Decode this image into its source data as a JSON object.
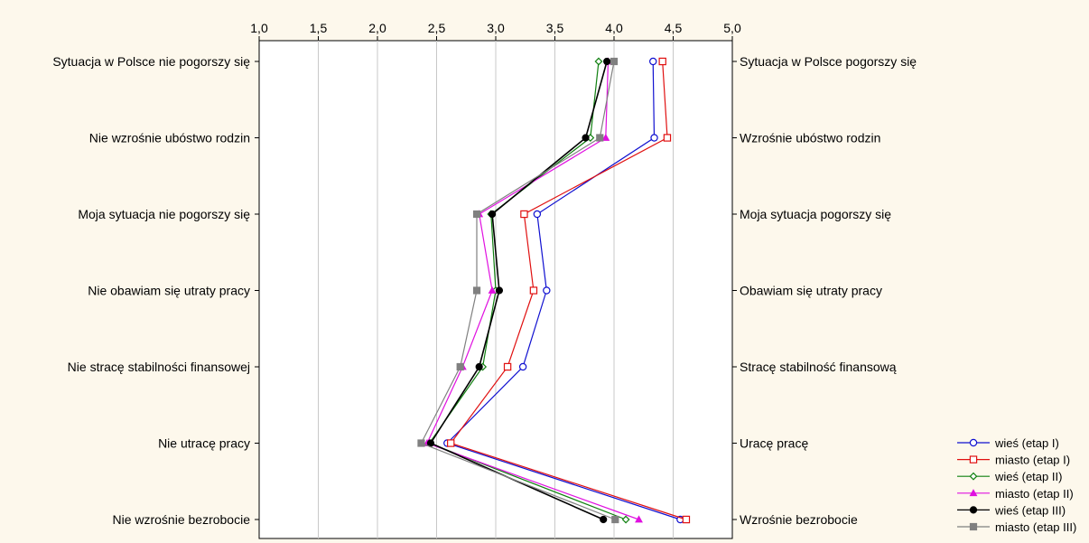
{
  "chart_data": {
    "type": "line",
    "orientation": "horizontal-profile",
    "xlim": [
      1.0,
      5.0
    ],
    "x_ticks": [
      "1,0",
      "1,5",
      "2,0",
      "2,5",
      "3,0",
      "3,5",
      "4,0",
      "4,5",
      "5,0"
    ],
    "x_tick_values": [
      1.0,
      1.5,
      2.0,
      2.5,
      3.0,
      3.5,
      4.0,
      4.5,
      5.0
    ],
    "grid": true,
    "legend_placement": "bottom-right",
    "left_labels": [
      "Sytuacja w Polsce nie pogorszy się",
      "Nie wzrośnie ubóstwo rodzin",
      "Moja sytuacja nie pogorszy się",
      "Nie obawiam się utraty pracy",
      "Nie stracę stabilności finansowej",
      "Nie utracę pracy",
      "Nie wzrośnie bezrobocie"
    ],
    "right_labels": [
      "Sytuacja w Polsce pogorszy się",
      "Wzrośnie ubóstwo rodzin",
      "Moja sytuacja pogorszy się",
      "Obawiam się utraty pracy",
      "Stracę stabilność finansową",
      "Uracę pracę",
      "Wzrośnie bezrobocie"
    ],
    "series": [
      {
        "name": "wieś (etap I)",
        "color": "#1010d0",
        "marker": "circle",
        "values": [
          4.33,
          4.34,
          3.35,
          3.43,
          3.23,
          2.59,
          4.56
        ]
      },
      {
        "name": "miasto (etap I)",
        "color": "#e01010",
        "marker": "square-open",
        "values": [
          4.41,
          4.45,
          3.24,
          3.32,
          3.1,
          2.62,
          4.61
        ]
      },
      {
        "name": "wieś (etap II)",
        "color": "#108010",
        "marker": "diamond",
        "values": [
          3.87,
          3.8,
          2.96,
          3.0,
          2.89,
          2.44,
          4.1
        ]
      },
      {
        "name": "miasto (etap II)",
        "color": "#e010e0",
        "marker": "triangle",
        "values": [
          3.95,
          3.93,
          2.86,
          2.97,
          2.72,
          2.42,
          4.21
        ]
      },
      {
        "name": "wieś (etap III)",
        "color": "#000000",
        "marker": "circle-filled",
        "values": [
          3.94,
          3.76,
          2.97,
          3.03,
          2.86,
          2.45,
          3.91
        ]
      },
      {
        "name": "miasto (etap III)",
        "color": "#808080",
        "marker": "square-filled",
        "values": [
          4.0,
          3.88,
          2.84,
          2.84,
          2.7,
          2.37,
          4.01
        ]
      }
    ]
  }
}
